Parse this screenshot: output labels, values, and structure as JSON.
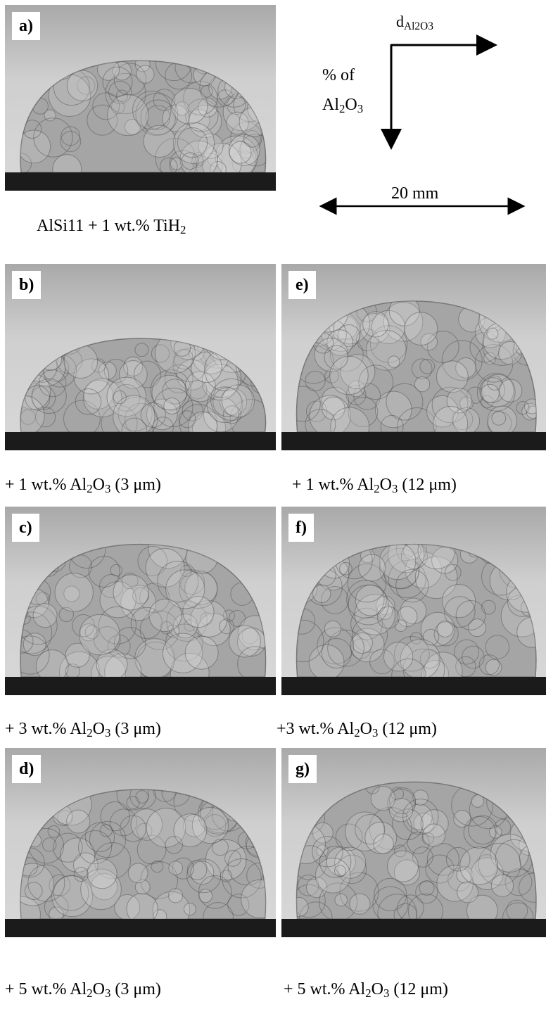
{
  "panels": [
    {
      "label": "a)",
      "caption": [
        {
          "text": "AlSi11 + 1 wt.% TiH"
        },
        {
          "sub": "2"
        }
      ]
    },
    {
      "label": "b)",
      "caption": [
        {
          "text": "+ 1 wt.% Al"
        },
        {
          "sub": "2"
        },
        {
          "text": "O"
        },
        {
          "sub": "3"
        },
        {
          "text": " (3 μm)"
        }
      ]
    },
    {
      "label": "c)",
      "caption": [
        {
          "text": "+ 3 wt.% Al"
        },
        {
          "sub": "2"
        },
        {
          "text": "O"
        },
        {
          "sub": "3"
        },
        {
          "text": " (3 μm)"
        }
      ]
    },
    {
      "label": "d)",
      "caption": [
        {
          "text": "+ 5 wt.% Al"
        },
        {
          "sub": "2"
        },
        {
          "text": "O"
        },
        {
          "sub": "3"
        },
        {
          "text": " (3 μm)"
        }
      ]
    },
    {
      "label": "e)",
      "caption": [
        {
          "text": "+ 1 wt.% Al"
        },
        {
          "sub": "2"
        },
        {
          "text": "O"
        },
        {
          "sub": "3"
        },
        {
          "text": " (12 μm)"
        }
      ]
    },
    {
      "label": "f)",
      "caption": [
        {
          "text": "+3 wt.% Al"
        },
        {
          "sub": "2"
        },
        {
          "text": "O"
        },
        {
          "sub": "3"
        },
        {
          "text": " (12 μm)"
        }
      ]
    },
    {
      "label": "g)",
      "caption": [
        {
          "text": "+ 5 wt.% Al"
        },
        {
          "sub": "2"
        },
        {
          "text": "O"
        },
        {
          "sub": "3"
        },
        {
          "text": " (12 μm)"
        }
      ]
    }
  ],
  "legend": {
    "size_axis": [
      {
        "text": "d"
      },
      {
        "sub": "Al2O3"
      }
    ],
    "fraction_axis_line1": "% of",
    "fraction_axis_line2": [
      {
        "text": "Al"
      },
      {
        "sub": "2"
      },
      {
        "text": "O"
      },
      {
        "sub": "3"
      }
    ],
    "scale": "20 mm"
  }
}
